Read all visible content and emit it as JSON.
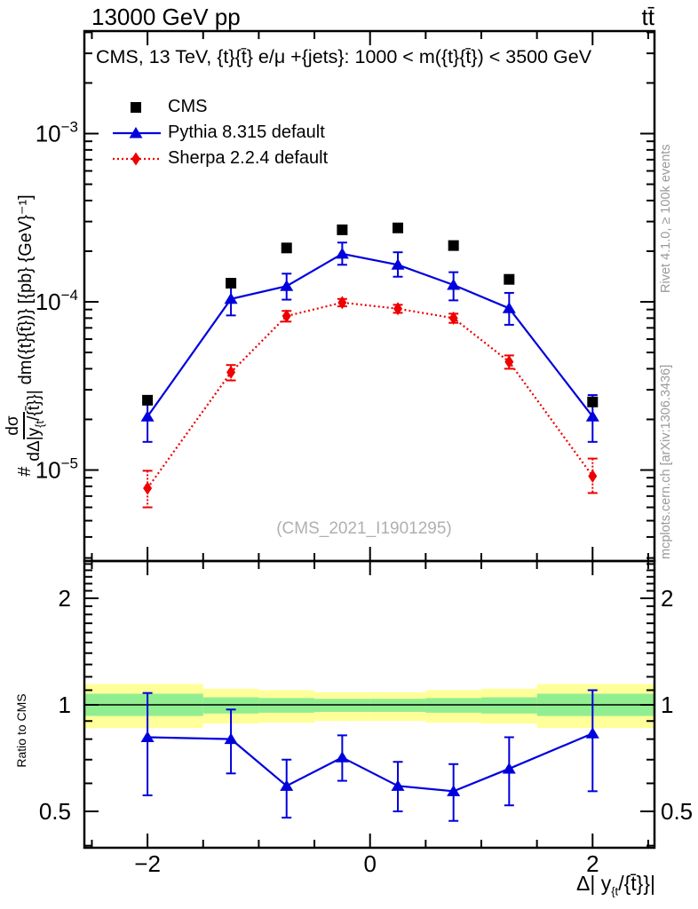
{
  "header": {
    "left": "13000 GeV pp",
    "right": "tt̄"
  },
  "panel_title": "CMS, 13 TeV, {t}{t̄} e/μ +{jets}: 1000 < m({t}{t̄}) < 3500 GeV",
  "legend": [
    {
      "label": "CMS",
      "marker": "square",
      "color": "#000000",
      "line": "none"
    },
    {
      "label": "Pythia 8.315 default",
      "marker": "triangle",
      "color": "#0000dd",
      "line": "solid"
    },
    {
      "label": "Sherpa 2.2.4 default",
      "marker": "diamond",
      "color": "#ee0000",
      "line": "dotted"
    }
  ],
  "watermark": "(CMS_2021_I1901295)",
  "side_notes": {
    "top": "Rivet 4.1.0, ≥ 100k events",
    "bottom": "mcplots.cern.ch [arXiv:1306.3436]"
  },
  "axes": {
    "y_label": {
      "prefix": "#",
      "frac_num": "dσ",
      "frac_den_pre": "dΔ|y",
      "frac_den_sub": "{t",
      "frac_den_post": "/{t̄}}|",
      "suffix": "dm({t}{t̄})} [{pb} {GeV}⁻¹]"
    },
    "x_label": {
      "pre": "Δ| y",
      "sub": "{t",
      "post": "/{t̄}}|"
    },
    "ratio_label": "Ratio to CMS"
  },
  "chart_data": {
    "type": "line",
    "bin_edges": [
      -2.5,
      -1.5,
      -1.0,
      -0.5,
      0.0,
      0.5,
      1.0,
      1.5,
      2.5
    ],
    "x": [
      -2.0,
      -1.25,
      -0.75,
      -0.25,
      0.25,
      0.75,
      1.25,
      2.0
    ],
    "xlim": [
      -2.567,
      2.556
    ],
    "xticks_labeled": [
      -2,
      0,
      2
    ],
    "xtick_step": 0.5,
    "main_panel": {
      "yscale": "log",
      "ylim": [
        2.9e-06,
        0.00405
      ],
      "ytick_decades": [
        -3,
        -4,
        -5
      ],
      "series": [
        {
          "name": "CMS",
          "marker": "square",
          "color": "#000000",
          "line": "none",
          "values": [
            2.6e-05,
            0.000129,
            0.000209,
            0.000268,
            0.000275,
            0.000216,
            0.000136,
            2.54e-05
          ]
        },
        {
          "name": "Pythia 8.315 default",
          "marker": "triangle",
          "color": "#0000dd",
          "line": "solid",
          "values": [
            2.08e-05,
            0.000104,
            0.000124,
            0.000193,
            0.000166,
            0.000126,
            9.15e-05,
            2.08e-05
          ],
          "err_lo": [
            6.1e-06,
            2.1e-05,
            2.1e-05,
            2.7e-05,
            2.5e-05,
            2.4e-05,
            1.85e-05,
            6.1e-06
          ],
          "err_hi": [
            5.4e-06,
            1.8e-05,
            2.3e-05,
            3.2e-05,
            3.1e-05,
            2.4e-05,
            2.15e-05,
            7.1e-06
          ]
        },
        {
          "name": "Sherpa 2.2.4 default",
          "marker": "diamond",
          "color": "#ee0000",
          "line": "dotted",
          "values": [
            7.8e-06,
            3.81e-05,
            8.23e-05,
            9.9e-05,
            9.1e-05,
            8e-05,
            4.4e-05,
            9.2e-06
          ],
          "err_lo": [
            1.8e-06,
            4e-06,
            6e-06,
            5e-06,
            5e-06,
            5e-06,
            4e-06,
            1.9e-06
          ],
          "err_hi": [
            2.1e-06,
            4e-06,
            6e-06,
            5e-06,
            5e-06,
            5e-06,
            4e-06,
            2.5e-06
          ]
        }
      ]
    },
    "ratio_panel": {
      "yscale": "log",
      "ylim": [
        0.395,
        2.55
      ],
      "yticks_labeled": [
        2,
        1,
        0.5
      ],
      "reference_line": 1,
      "bands": {
        "yellow": {
          "color": "#ffff99",
          "lo": [
            0.86,
            0.885,
            0.89,
            0.9,
            0.9,
            0.89,
            0.885,
            0.86
          ],
          "hi": [
            1.145,
            1.11,
            1.1,
            1.085,
            1.085,
            1.1,
            1.11,
            1.145
          ]
        },
        "green": {
          "color": "#90ee90",
          "lo": [
            0.93,
            0.945,
            0.95,
            0.955,
            0.955,
            0.95,
            0.945,
            0.93
          ],
          "hi": [
            1.075,
            1.05,
            1.045,
            1.04,
            1.04,
            1.045,
            1.05,
            1.075
          ]
        }
      },
      "series": [
        {
          "name": "Pythia 8.315 default / CMS",
          "marker": "triangle",
          "color": "#0000dd",
          "line": "solid",
          "values": [
            0.81,
            0.8,
            0.59,
            0.71,
            0.59,
            0.57,
            0.66,
            0.83
          ],
          "err_lo": [
            0.255,
            0.16,
            0.11,
            0.1,
            0.09,
            0.1,
            0.14,
            0.26
          ],
          "err_hi": [
            0.27,
            0.17,
            0.11,
            0.11,
            0.1,
            0.11,
            0.15,
            0.27
          ]
        }
      ]
    }
  }
}
